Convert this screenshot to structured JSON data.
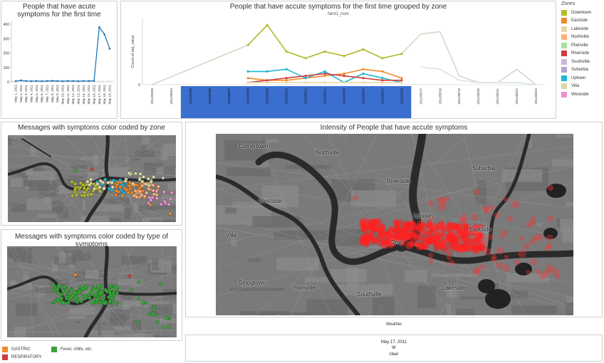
{
  "panel1": {
    "title": "People that have acute symptoms for the first time"
  },
  "panel2": {
    "title": "People that have accute symptoms for the first time grouped by zone",
    "measure_label": "faint1_num",
    "ylabel": "Count of dat_value"
  },
  "legend": {
    "title": "Zones",
    "items": [
      {
        "label": "Downtown",
        "color": "#b5bb2c"
      },
      {
        "label": "Eastside",
        "color": "#f08a2a"
      },
      {
        "label": "Lakeside",
        "color": "#e9d7a6"
      },
      {
        "label": "Northville",
        "color": "#ffb07a"
      },
      {
        "label": "Plainville",
        "color": "#a8e0a0"
      },
      {
        "label": "Riverside",
        "color": "#d23b3b"
      },
      {
        "label": "Southville",
        "color": "#c7b7db"
      },
      {
        "label": "Suburbia",
        "color": "#b3a3cf"
      },
      {
        "label": "Uptown",
        "color": "#1fb6d3"
      },
      {
        "label": "Villa",
        "color": "#d8d8a8"
      },
      {
        "label": "Westside",
        "color": "#ef8fcf"
      }
    ]
  },
  "panel3": {
    "title": "Messages with symptoms color coded by zone"
  },
  "panel4": {
    "title": "Messages with symptoms color coded by type of symptoms"
  },
  "panel5": {
    "title": "Intensity of People that have accute symptoms",
    "map_labels": [
      "Cornertown",
      "Northville",
      "Riverside",
      "Suburbia",
      "Westside",
      "Uptown",
      "Eastside",
      "Villa",
      "Dow",
      "Smogtown",
      "Plainville",
      "Southville",
      "Lakeside"
    ]
  },
  "weather": {
    "title": "Weather",
    "date": "May 17, 2011",
    "wind": "W",
    "condition": "clear"
  },
  "symptom_legend": [
    {
      "label": "GASTRIC",
      "color": "#f08a2a"
    },
    {
      "label": "RESPIRATORY",
      "color": "#d23b3b"
    },
    {
      "label": "Fever, chills, etc.",
      "color": "#3aa63a"
    }
  ],
  "chart_data": [
    {
      "type": "line",
      "title": "People that have acute symptoms for the first time",
      "x": [
        "May 1, 2011",
        "May 2, 2011",
        "May 3, 2011",
        "May 4, 2011",
        "May 5, 2011",
        "May 6, 2011",
        "May 7, 2011",
        "May 8, 2011",
        "May 9, 2011",
        "May 10, 2011",
        "May 11, 2011",
        "May 12, 2011",
        "May 13, 2011",
        "May 14, 2011",
        "May 15, 2011",
        "May 16, 2011",
        "May 17, 2011",
        "May 18, 2011",
        "May 19, 2011"
      ],
      "series": [
        {
          "values": [
            5,
            10,
            6,
            5,
            6,
            5,
            6,
            7,
            6,
            5,
            6,
            6,
            5,
            6,
            6,
            7,
            380,
            330,
            230
          ]
        }
      ],
      "yticks": [
        0,
        100,
        200,
        300,
        400
      ],
      "ylim": [
        0,
        420
      ]
    },
    {
      "type": "line",
      "title": "People that have accute symptoms for the first time grouped by zone",
      "x": [
        "2011/05/03",
        "2011/05/04",
        "2011/05/05",
        "2011/05/06",
        "2011/05/07",
        "2011/05/08",
        "2011/05/09",
        "2011/05/10",
        "2011/05/11",
        "2011/05/12",
        "2011/05/13",
        "2011/05/14",
        "2011/05/15",
        "2011/05/16",
        "2011/05/17",
        "2011/05/18",
        "2011/05/19",
        "2011/05/20",
        "2011/05/21",
        "2011/05/22",
        "2011/05/23"
      ],
      "ylim": [
        0,
        30
      ],
      "series": [
        {
          "name": "Downtown",
          "values": [
            null,
            null,
            null,
            null,
            null,
            18,
            27,
            15,
            12,
            15,
            13,
            16,
            12,
            14,
            null,
            null,
            null,
            null,
            null,
            null,
            null
          ]
        },
        {
          "name": "Eastside",
          "values": [
            null,
            null,
            null,
            null,
            null,
            3,
            2,
            2,
            3,
            4,
            5,
            7,
            6,
            3,
            null,
            null,
            null,
            null,
            null,
            null,
            null
          ]
        },
        {
          "name": "Uptown",
          "values": [
            null,
            null,
            null,
            null,
            null,
            6,
            6,
            7,
            3,
            6,
            1,
            5,
            3,
            1,
            null,
            null,
            null,
            null,
            null,
            null,
            null
          ]
        },
        {
          "name": "Riverside",
          "values": [
            null,
            null,
            null,
            null,
            null,
            1,
            2,
            3,
            4,
            5,
            4,
            3,
            2,
            2,
            null,
            null,
            null,
            null,
            null,
            null,
            null
          ]
        },
        {
          "name": "Lakeside",
          "values": [
            null,
            null,
            null,
            null,
            null,
            1,
            1,
            1,
            1,
            1,
            1,
            1,
            1,
            1,
            null,
            null,
            null,
            null,
            null,
            null,
            null
          ]
        }
      ],
      "background_series": [
        {
          "values": [
            0,
            null,
            null,
            null,
            null,
            18,
            27,
            15,
            12,
            15,
            13,
            16,
            12,
            14,
            23,
            24,
            4,
            1,
            1,
            7,
            0
          ]
        },
        {
          "values": [
            null,
            null,
            null,
            null,
            null,
            null,
            null,
            null,
            null,
            null,
            null,
            null,
            null,
            null,
            8,
            7,
            2,
            1,
            1,
            1,
            0
          ]
        }
      ],
      "highlight_range": [
        "2011/05/05",
        "2011/05/16"
      ]
    }
  ]
}
